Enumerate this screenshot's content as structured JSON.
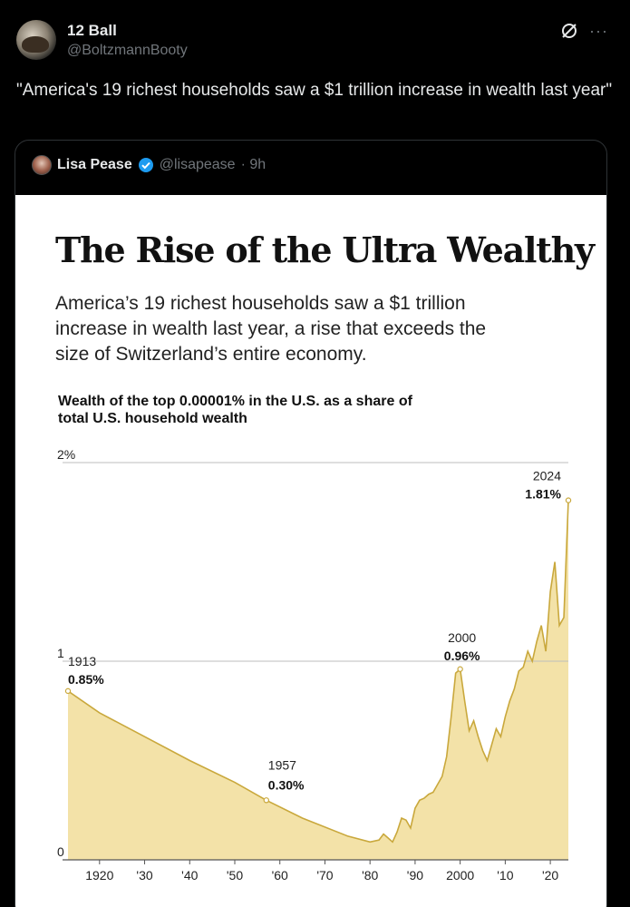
{
  "post": {
    "author_name": "12 Ball",
    "author_handle": "@BoltzmannBooty",
    "text": "\"America's 19 richest households saw a $1 trillion increase in wealth last year\""
  },
  "quote": {
    "author_name": "Lisa Pease",
    "author_handle": "@lisapease",
    "time": "· 9h"
  },
  "chart_data": {
    "type": "area",
    "title": "The Rise of the Ultra Wealthy",
    "subtitle": "America’s 19 richest households saw a $1 trillion increase in wealth last year, a rise that exceeds the size of Switzerland’s entire economy.",
    "ylabel": "Wealth of the top 0.00001% in the U.S. as a share of total U.S. household wealth",
    "xlabel": "",
    "ylim": [
      0,
      2
    ],
    "xlim": [
      1913,
      2024
    ],
    "y_ticks": [
      {
        "value": 2,
        "label": "2%"
      },
      {
        "value": 1,
        "label": "1"
      },
      {
        "value": 0,
        "label": "0"
      }
    ],
    "x_ticks": [
      {
        "value": 1920,
        "label": "1920"
      },
      {
        "value": 1930,
        "label": "'30"
      },
      {
        "value": 1940,
        "label": "'40"
      },
      {
        "value": 1950,
        "label": "'50"
      },
      {
        "value": 1960,
        "label": "'60"
      },
      {
        "value": 1970,
        "label": "'70"
      },
      {
        "value": 1980,
        "label": "'80"
      },
      {
        "value": 1990,
        "label": "'90"
      },
      {
        "value": 2000,
        "label": "2000"
      },
      {
        "value": 2010,
        "label": "'10"
      },
      {
        "value": 2020,
        "label": "'20"
      }
    ],
    "grid": true,
    "colors": {
      "fill": "#f3e2a8",
      "line": "#c9a83c"
    },
    "series": [
      {
        "x": [
          1913,
          1920,
          1930,
          1940,
          1950,
          1957,
          1965,
          1975,
          1980,
          1982,
          1983,
          1984,
          1985,
          1986,
          1987,
          1988,
          1989,
          1990,
          1991,
          1992,
          1993,
          1994,
          1995,
          1996,
          1997,
          1998,
          1999,
          2000,
          2001,
          2002,
          2003,
          2004,
          2005,
          2006,
          2007,
          2008,
          2009,
          2010,
          2011,
          2012,
          2013,
          2014,
          2015,
          2016,
          2017,
          2018,
          2019,
          2020,
          2021,
          2022,
          2023,
          2024
        ],
        "values": [
          0.85,
          0.74,
          0.62,
          0.5,
          0.39,
          0.3,
          0.21,
          0.12,
          0.09,
          0.1,
          0.13,
          0.11,
          0.09,
          0.14,
          0.21,
          0.2,
          0.16,
          0.26,
          0.3,
          0.31,
          0.33,
          0.34,
          0.38,
          0.42,
          0.52,
          0.72,
          0.94,
          0.96,
          0.8,
          0.65,
          0.7,
          0.62,
          0.55,
          0.5,
          0.58,
          0.66,
          0.62,
          0.72,
          0.8,
          0.86,
          0.95,
          0.97,
          1.05,
          1.0,
          1.1,
          1.18,
          1.05,
          1.35,
          1.5,
          1.18,
          1.22,
          1.81
        ]
      }
    ],
    "annotations": [
      {
        "x": 1913,
        "y": 0.85,
        "year": "1913",
        "value": "0.85%"
      },
      {
        "x": 1957,
        "y": 0.3,
        "year": "1957",
        "value": "0.30%"
      },
      {
        "x": 2000,
        "y": 0.96,
        "year": "2000",
        "value": "0.96%"
      },
      {
        "x": 2024,
        "y": 1.81,
        "year": "2024",
        "value": "1.81%"
      }
    ]
  }
}
